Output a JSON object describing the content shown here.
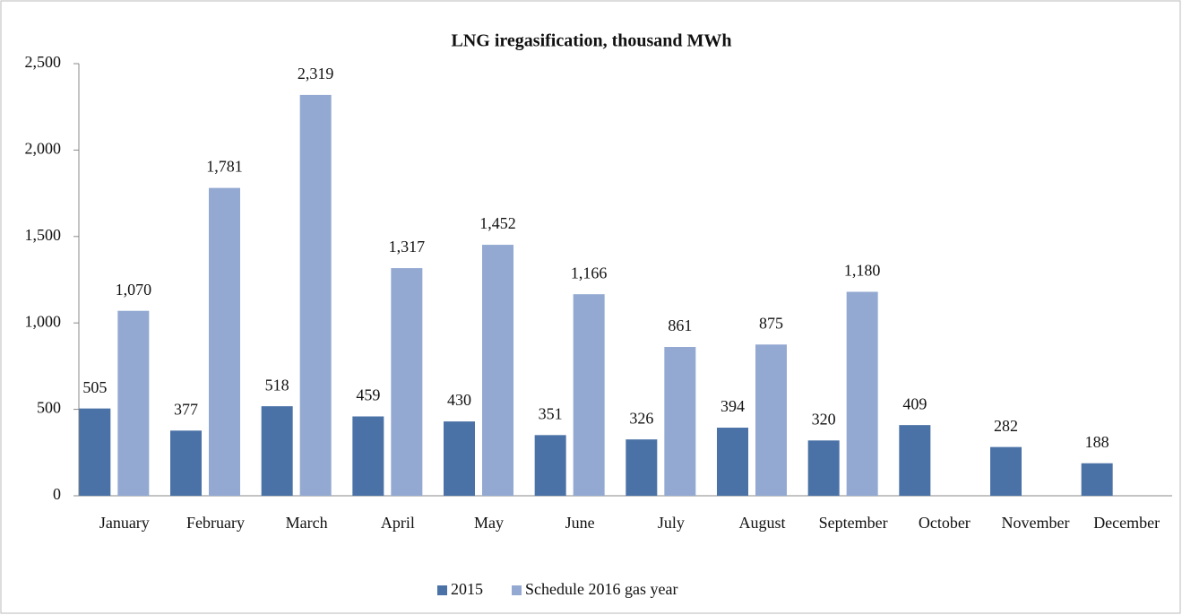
{
  "chart_data": {
    "type": "bar",
    "title": "LNG iregasification, thousand MWh",
    "categories": [
      "January",
      "February",
      "March",
      "April",
      "May",
      "June",
      "July",
      "August",
      "September",
      "October",
      "November",
      "December"
    ],
    "series": [
      {
        "name": "2015",
        "color": "#4a72a6",
        "values": [
          505,
          377,
          518,
          459,
          430,
          351,
          326,
          394,
          320,
          409,
          282,
          188
        ]
      },
      {
        "name": "Schedule 2016 gas year",
        "color": "#93a9d2",
        "values": [
          1070,
          1781,
          2319,
          1317,
          1452,
          1166,
          861,
          875,
          1180,
          null,
          null,
          null
        ],
        "value_labels": [
          "1,070",
          "1,781",
          "2,319",
          "1,317",
          "1,452",
          "1,166",
          "861",
          "875",
          "1,180",
          null,
          null,
          null
        ]
      }
    ],
    "ylim": [
      0,
      2500
    ],
    "yticks": [
      0,
      500,
      {
        "value": 1000,
        "label": "1,000"
      },
      {
        "value": 1500,
        "label": "1,500"
      },
      {
        "value": 2000,
        "label": "2,000"
      },
      {
        "value": 2500,
        "label": "2,500"
      }
    ],
    "grid": false,
    "legend": "bottom"
  }
}
